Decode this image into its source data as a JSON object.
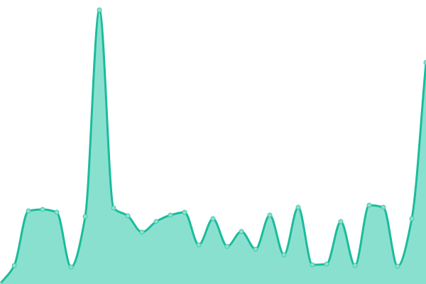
{
  "chart_data": {
    "type": "area",
    "title": "",
    "xlabel": "",
    "ylabel": "",
    "x": [
      0,
      1,
      2,
      3,
      4,
      5,
      6,
      7,
      8,
      9,
      10,
      11,
      12,
      13,
      14,
      15,
      16,
      17,
      18,
      19,
      20,
      21,
      22,
      23,
      24,
      25,
      26,
      27,
      27.999,
      29,
      30
    ],
    "values": [
      0,
      26,
      103,
      105,
      101,
      24,
      95,
      386,
      107,
      96,
      73,
      88,
      97,
      101,
      55,
      92,
      53,
      74,
      49,
      97,
      41,
      108,
      27,
      28,
      88,
      26,
      111,
      108,
      25,
      92,
      312
    ],
    "xlim": [
      0,
      30
    ],
    "ylim": [
      0,
      400
    ],
    "grid": false,
    "axes_visible": false,
    "curve": "smooth",
    "colors": {
      "line": "#1abc9c",
      "fill": "#8ae0cf",
      "marker_fill": "#8ae0cf",
      "marker_stroke": "#48c9a9"
    }
  }
}
